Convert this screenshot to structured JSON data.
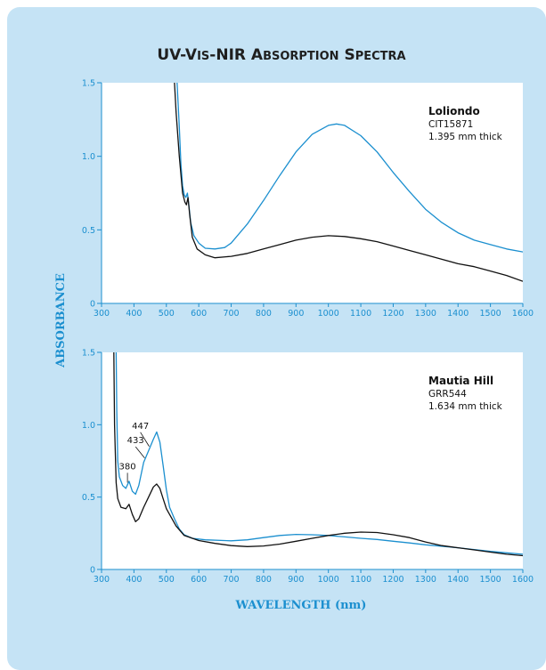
{
  "title": "UV-Vis-NIR Absorption Spectra",
  "ylabel": "ABSORBANCE",
  "xlabel": "WAVELENGTH (nm)",
  "colors": {
    "blue": "#1b8fcf",
    "black": "#111111",
    "background": "#c5e3f5"
  },
  "chart_data": [
    {
      "type": "line",
      "xlim": [
        300,
        1600
      ],
      "ylim": [
        0,
        1.5
      ],
      "x_ticks": [
        300,
        400,
        500,
        600,
        700,
        800,
        900,
        1000,
        1100,
        1200,
        1300,
        1400,
        1500,
        1600
      ],
      "y_ticks": [
        {
          "v": 0,
          "label": "0"
        },
        {
          "v": 0.5,
          "label": "0.5"
        },
        {
          "v": 1.0,
          "label": "1.0"
        },
        {
          "v": 1.5,
          "label": "1.5"
        }
      ],
      "annotation": {
        "name": "Loliondo",
        "sample": "CIT15871",
        "thickness": "1.395 mm thick"
      },
      "peaks": [],
      "series": [
        {
          "color": "#1b8fcf",
          "points": [
            [
              533,
              1.5
            ],
            [
              540,
              1.2
            ],
            [
              545,
              0.95
            ],
            [
              550,
              0.8
            ],
            [
              555,
              0.74
            ],
            [
              560,
              0.72
            ],
            [
              565,
              0.75
            ],
            [
              570,
              0.66
            ],
            [
              575,
              0.55
            ],
            [
              585,
              0.46
            ],
            [
              600,
              0.41
            ],
            [
              620,
              0.375
            ],
            [
              650,
              0.37
            ],
            [
              680,
              0.38
            ],
            [
              700,
              0.41
            ],
            [
              750,
              0.54
            ],
            [
              800,
              0.7
            ],
            [
              850,
              0.87
            ],
            [
              900,
              1.03
            ],
            [
              950,
              1.15
            ],
            [
              1000,
              1.21
            ],
            [
              1025,
              1.22
            ],
            [
              1050,
              1.21
            ],
            [
              1100,
              1.14
            ],
            [
              1150,
              1.03
            ],
            [
              1200,
              0.89
            ],
            [
              1250,
              0.76
            ],
            [
              1300,
              0.64
            ],
            [
              1350,
              0.55
            ],
            [
              1400,
              0.48
            ],
            [
              1450,
              0.43
            ],
            [
              1500,
              0.4
            ],
            [
              1550,
              0.37
            ],
            [
              1600,
              0.35
            ]
          ]
        },
        {
          "color": "#111111",
          "points": [
            [
              525,
              1.5
            ],
            [
              530,
              1.3
            ],
            [
              540,
              1.0
            ],
            [
              550,
              0.75
            ],
            [
              557,
              0.69
            ],
            [
              562,
              0.67
            ],
            [
              567,
              0.72
            ],
            [
              572,
              0.6
            ],
            [
              580,
              0.45
            ],
            [
              595,
              0.37
            ],
            [
              620,
              0.33
            ],
            [
              650,
              0.31
            ],
            [
              700,
              0.32
            ],
            [
              750,
              0.34
            ],
            [
              800,
              0.37
            ],
            [
              850,
              0.4
            ],
            [
              900,
              0.43
            ],
            [
              950,
              0.45
            ],
            [
              1000,
              0.46
            ],
            [
              1050,
              0.455
            ],
            [
              1100,
              0.44
            ],
            [
              1150,
              0.42
            ],
            [
              1200,
              0.39
            ],
            [
              1250,
              0.36
            ],
            [
              1300,
              0.33
            ],
            [
              1350,
              0.3
            ],
            [
              1400,
              0.27
            ],
            [
              1450,
              0.25
            ],
            [
              1500,
              0.22
            ],
            [
              1550,
              0.19
            ],
            [
              1600,
              0.15
            ]
          ]
        }
      ]
    },
    {
      "type": "line",
      "xlim": [
        300,
        1600
      ],
      "ylim": [
        0,
        1.5
      ],
      "x_ticks": [
        300,
        400,
        500,
        600,
        700,
        800,
        900,
        1000,
        1100,
        1200,
        1300,
        1400,
        1500,
        1600
      ],
      "y_ticks": [
        {
          "v": 0,
          "label": "0"
        },
        {
          "v": 0.5,
          "label": "0.5"
        },
        {
          "v": 1.0,
          "label": "1.0"
        },
        {
          "v": 1.5,
          "label": "1.5"
        }
      ],
      "annotation": {
        "name": "Mautia Hill",
        "sample": "GRR544",
        "thickness": "1.634 mm thick"
      },
      "peaks": [
        {
          "label": "380",
          "x": 380,
          "y": 0.6,
          "lx": 380,
          "ly": 0.68
        },
        {
          "label": "433",
          "x": 433,
          "y": 0.77,
          "lx": 405,
          "ly": 0.86
        },
        {
          "label": "447",
          "x": 447,
          "y": 0.85,
          "lx": 420,
          "ly": 0.96
        }
      ],
      "series": [
        {
          "color": "#1b8fcf",
          "points": [
            [
              345,
              1.5
            ],
            [
              347,
              1.1
            ],
            [
              350,
              0.75
            ],
            [
              355,
              0.64
            ],
            [
              365,
              0.58
            ],
            [
              375,
              0.56
            ],
            [
              385,
              0.61
            ],
            [
              395,
              0.54
            ],
            [
              405,
              0.52
            ],
            [
              415,
              0.58
            ],
            [
              430,
              0.74
            ],
            [
              445,
              0.82
            ],
            [
              460,
              0.9
            ],
            [
              470,
              0.95
            ],
            [
              480,
              0.88
            ],
            [
              490,
              0.72
            ],
            [
              500,
              0.55
            ],
            [
              510,
              0.43
            ],
            [
              525,
              0.35
            ],
            [
              540,
              0.28
            ],
            [
              555,
              0.24
            ],
            [
              580,
              0.215
            ],
            [
              620,
              0.205
            ],
            [
              700,
              0.198
            ],
            [
              750,
              0.205
            ],
            [
              800,
              0.22
            ],
            [
              850,
              0.235
            ],
            [
              900,
              0.242
            ],
            [
              950,
              0.24
            ],
            [
              1000,
              0.235
            ],
            [
              1050,
              0.225
            ],
            [
              1100,
              0.215
            ],
            [
              1150,
              0.207
            ],
            [
              1200,
              0.195
            ],
            [
              1250,
              0.183
            ],
            [
              1300,
              0.17
            ],
            [
              1400,
              0.15
            ],
            [
              1500,
              0.125
            ],
            [
              1600,
              0.105
            ]
          ]
        },
        {
          "color": "#111111",
          "points": [
            [
              338,
              1.5
            ],
            [
              340,
              1.0
            ],
            [
              345,
              0.6
            ],
            [
              350,
              0.49
            ],
            [
              360,
              0.43
            ],
            [
              375,
              0.42
            ],
            [
              385,
              0.45
            ],
            [
              395,
              0.38
            ],
            [
              405,
              0.33
            ],
            [
              415,
              0.35
            ],
            [
              430,
              0.43
            ],
            [
              445,
              0.5
            ],
            [
              460,
              0.57
            ],
            [
              470,
              0.59
            ],
            [
              480,
              0.56
            ],
            [
              490,
              0.49
            ],
            [
              500,
              0.42
            ],
            [
              510,
              0.38
            ],
            [
              530,
              0.3
            ],
            [
              555,
              0.235
            ],
            [
              600,
              0.2
            ],
            [
              650,
              0.18
            ],
            [
              700,
              0.165
            ],
            [
              750,
              0.158
            ],
            [
              800,
              0.162
            ],
            [
              850,
              0.175
            ],
            [
              900,
              0.195
            ],
            [
              950,
              0.215
            ],
            [
              1000,
              0.235
            ],
            [
              1050,
              0.25
            ],
            [
              1100,
              0.258
            ],
            [
              1150,
              0.255
            ],
            [
              1200,
              0.24
            ],
            [
              1250,
              0.22
            ],
            [
              1300,
              0.19
            ],
            [
              1350,
              0.165
            ],
            [
              1400,
              0.15
            ],
            [
              1450,
              0.135
            ],
            [
              1500,
              0.12
            ],
            [
              1550,
              0.105
            ],
            [
              1600,
              0.095
            ]
          ]
        }
      ]
    }
  ]
}
